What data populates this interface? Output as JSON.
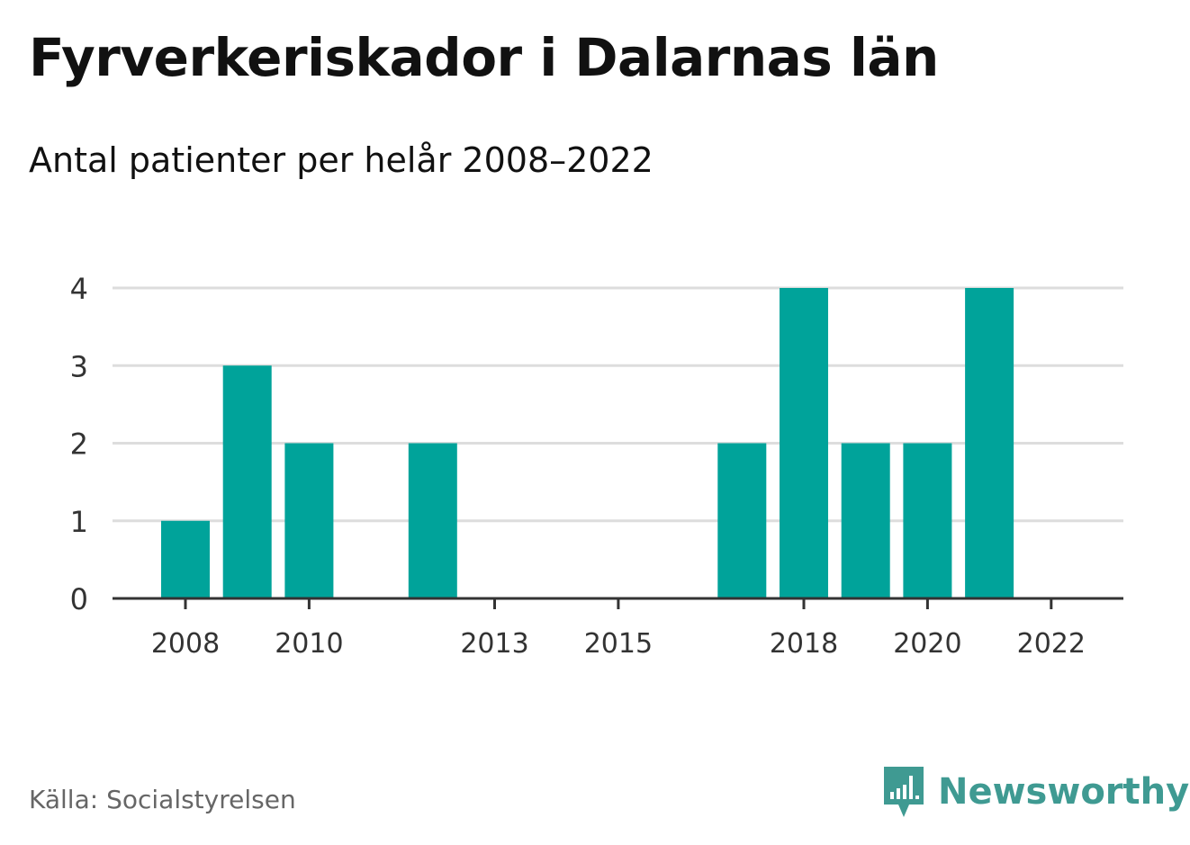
{
  "header": {
    "title": "Fyrverkeriskador i Dalarnas län",
    "subtitle": "Antal patienter per helår 2008–2022"
  },
  "footer": {
    "source": "Källa: Socialstyrelsen",
    "brand_name": "Newsworthy",
    "brand_icon": "bar-chart-speech-bubble-icon"
  },
  "colors": {
    "bar": "#00a39a",
    "brand": "#3f9a92",
    "grid": "#dddddd",
    "axis": "#333333"
  },
  "chart_data": {
    "type": "bar",
    "title": "Fyrverkeriskador i Dalarnas län",
    "subtitle": "Antal patienter per helår 2008–2022",
    "xlabel": "",
    "ylabel": "",
    "categories": [
      "2008",
      "2009",
      "2010",
      "2011",
      "2012",
      "2013",
      "2014",
      "2015",
      "2016",
      "2017",
      "2018",
      "2019",
      "2020",
      "2021",
      "2022"
    ],
    "values": [
      1,
      3,
      2,
      0,
      2,
      0,
      0,
      0,
      0,
      2,
      4,
      2,
      2,
      4,
      0
    ],
    "ylim": [
      0,
      4
    ],
    "yticks": [
      "0",
      "1",
      "2",
      "3",
      "4"
    ],
    "xtick_labels": [
      "2008",
      "2010",
      "2013",
      "2015",
      "2018",
      "2020",
      "2022"
    ],
    "grid": true,
    "legend": "none"
  }
}
